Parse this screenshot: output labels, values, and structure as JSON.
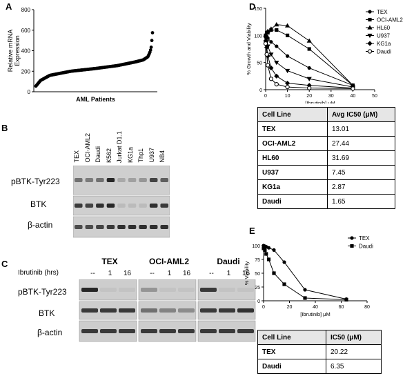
{
  "panels": {
    "A": {
      "label": "A",
      "ylabel_line1": "Relative mRNA",
      "ylabel_line2": "Expression",
      "xlabel": "AML Patients",
      "yticks": [
        "0",
        "200",
        "400",
        "600",
        "800"
      ]
    },
    "B": {
      "label": "B",
      "lanes": [
        "TEX",
        "OCI-AML2",
        "Daudi",
        "K562",
        "Jurkat D1.1",
        "KG1a",
        "Thp1",
        "U937",
        "NB4"
      ],
      "rows": [
        "pBTK-Tyr223",
        "BTK",
        "β-actin"
      ]
    },
    "C": {
      "label": "C",
      "treatment_label": "Ibrutinib (hrs)",
      "groups": [
        {
          "name": "TEX",
          "times": [
            "--",
            "1",
            "16"
          ]
        },
        {
          "name": "OCI-AML2",
          "times": [
            "--",
            "1",
            "16"
          ]
        },
        {
          "name": "Daudi",
          "times": [
            "--",
            "1",
            "16"
          ]
        }
      ],
      "rows": [
        "pBTK-Tyr223",
        "BTK",
        "β-actin"
      ]
    },
    "D": {
      "label": "D",
      "table": {
        "header": [
          "Cell Line",
          "Avg IC50 (μM)"
        ],
        "rows": [
          [
            "TEX",
            "13.01"
          ],
          [
            "OCI-AML2",
            "27.44"
          ],
          [
            "HL60",
            "31.69"
          ],
          [
            "U937",
            "7.45"
          ],
          [
            "KG1a",
            "2.87"
          ],
          [
            "Daudi",
            "1.65"
          ]
        ]
      }
    },
    "E": {
      "label": "E",
      "table": {
        "header": [
          "Cell Line",
          "IC50 (μM)"
        ],
        "rows": [
          [
            "TEX",
            "20.22"
          ],
          [
            "Daudi",
            "6.35"
          ]
        ]
      }
    }
  },
  "chart_data": [
    {
      "type": "scatter",
      "panel": "A",
      "xlabel": "AML Patients",
      "ylabel": "Relative mRNA Expression",
      "ylim": [
        0,
        800
      ],
      "xticks": [],
      "yticks": [
        0,
        200,
        400,
        600,
        800
      ],
      "n_points": 180,
      "quantiles": [
        [
          0,
          55
        ],
        [
          0.04,
          110
        ],
        [
          0.12,
          160
        ],
        [
          0.3,
          200
        ],
        [
          0.5,
          225
        ],
        [
          0.7,
          255
        ],
        [
          0.85,
          290
        ],
        [
          0.92,
          310
        ],
        [
          0.96,
          340
        ],
        [
          0.98,
          390
        ],
        [
          0.99,
          440
        ],
        [
          1.0,
          575
        ]
      ]
    },
    {
      "type": "line",
      "panel": "D",
      "xlabel": "[Ibrutinib] μM",
      "ylabel": "% Growth and Viability",
      "xlim": [
        0,
        50
      ],
      "ylim": [
        0,
        150
      ],
      "xticks": [
        0,
        10,
        20,
        30,
        40,
        50
      ],
      "yticks": [
        0,
        50,
        100,
        150
      ],
      "series": [
        {
          "name": "TEX",
          "marker": "circle",
          "x": [
            0,
            0.5,
            1,
            2.5,
            5,
            10,
            20,
            40
          ],
          "y": [
            100,
            98,
            95,
            88,
            80,
            62,
            40,
            8
          ]
        },
        {
          "name": "OCI-AML2",
          "marker": "square",
          "x": [
            0,
            0.5,
            1,
            2.5,
            5,
            10,
            20,
            40
          ],
          "y": [
            100,
            105,
            105,
            110,
            110,
            100,
            75,
            8
          ]
        },
        {
          "name": "HL60",
          "marker": "triangle-up",
          "x": [
            0,
            0.5,
            1,
            2.5,
            5,
            10,
            20,
            40
          ],
          "y": [
            100,
            105,
            108,
            112,
            120,
            118,
            90,
            8
          ]
        },
        {
          "name": "U937",
          "marker": "triangle-down",
          "x": [
            0,
            0.5,
            1,
            2.5,
            5,
            10,
            20,
            40
          ],
          "y": [
            95,
            88,
            80,
            65,
            50,
            35,
            20,
            5
          ]
        },
        {
          "name": "KG1a",
          "marker": "diamond",
          "x": [
            0,
            0.5,
            1,
            2.5,
            5,
            10,
            20,
            40
          ],
          "y": [
            90,
            78,
            62,
            40,
            25,
            12,
            8,
            3
          ]
        },
        {
          "name": "Daudi",
          "marker": "open-circle",
          "x": [
            0,
            0.5,
            1,
            2.5,
            5,
            10,
            20,
            40
          ],
          "y": [
            85,
            65,
            45,
            20,
            10,
            5,
            3,
            2
          ]
        }
      ]
    },
    {
      "type": "line",
      "panel": "E",
      "xlabel": "[Ibrutinib] μM",
      "ylabel": "% Viability",
      "xlim": [
        0,
        80
      ],
      "ylim": [
        0,
        100
      ],
      "xticks": [
        0,
        20,
        40,
        60,
        80
      ],
      "yticks": [
        0,
        25,
        50,
        75,
        100
      ],
      "series": [
        {
          "name": "TEX",
          "marker": "circle",
          "x": [
            0,
            1,
            2,
            4,
            8,
            16,
            32,
            64
          ],
          "y": [
            100,
            99,
            98,
            96,
            92,
            70,
            20,
            3
          ]
        },
        {
          "name": "Daudi",
          "marker": "square",
          "x": [
            0,
            1,
            2,
            4,
            8,
            16,
            32,
            64
          ],
          "y": [
            95,
            92,
            85,
            75,
            50,
            30,
            5,
            2
          ]
        }
      ]
    }
  ]
}
